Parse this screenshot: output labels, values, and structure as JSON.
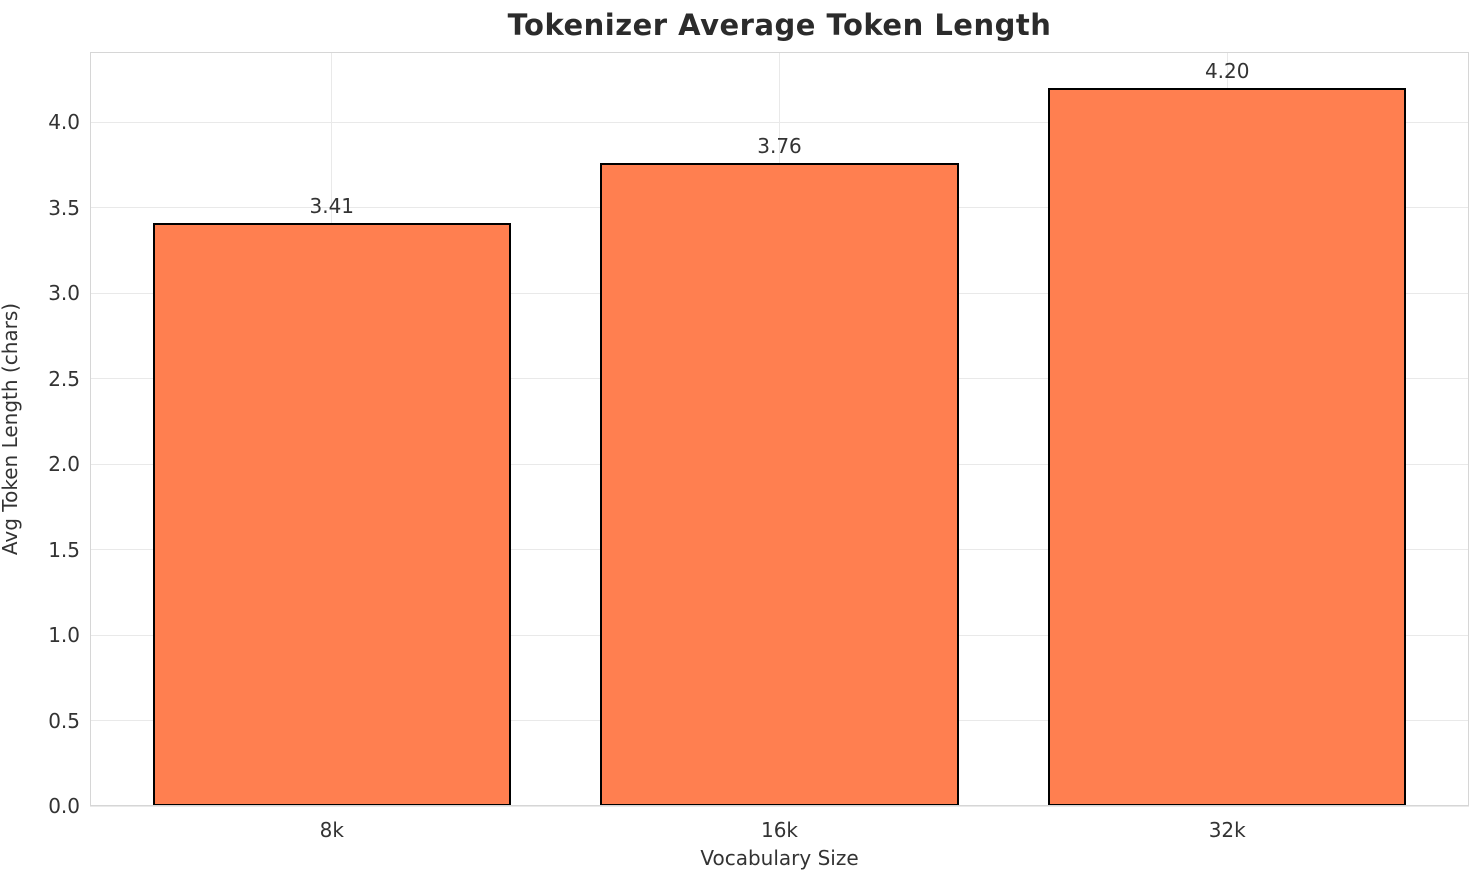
{
  "chart_data": {
    "type": "bar",
    "title": "Tokenizer Average Token Length",
    "xlabel": "Vocabulary Size",
    "ylabel": "Avg Token Length (chars)",
    "categories": [
      "8k",
      "16k",
      "32k"
    ],
    "values": [
      3.41,
      3.76,
      4.2
    ],
    "bar_labels": [
      "3.41",
      "3.76",
      "4.20"
    ],
    "yticks": [
      0.0,
      0.5,
      1.0,
      1.5,
      2.0,
      2.5,
      3.0,
      3.5,
      4.0
    ],
    "ytick_labels": [
      "0.0",
      "0.5",
      "1.0",
      "1.5",
      "2.0",
      "2.5",
      "3.0",
      "3.5",
      "4.0"
    ],
    "ylim": [
      0,
      4.41
    ],
    "xlim": [
      -0.54,
      2.54
    ],
    "bar_width": 0.8,
    "grid": true,
    "legend": "none",
    "colors": {
      "bar_fill": "#FF7F50",
      "bar_edge": "#000000",
      "grid_line": "#E9E9E9",
      "spine": "#D6D6D6",
      "text": "#333333",
      "title_text": "#2B2B2B"
    }
  }
}
